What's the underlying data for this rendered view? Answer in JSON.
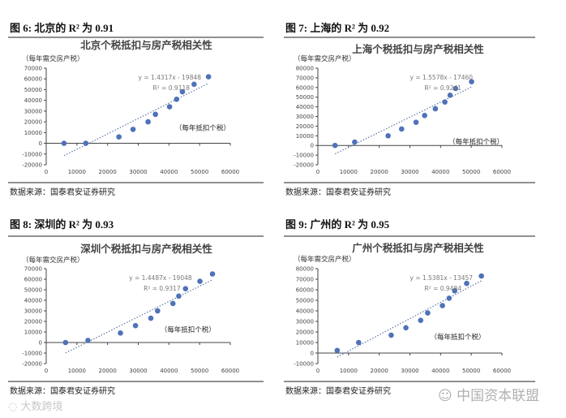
{
  "source_label": "数据来源：国泰君安证券研究",
  "watermarks": {
    "left": "大数跨境",
    "right": "中国资本联盟"
  },
  "colors": {
    "point": "#4f72b8",
    "trend": "#5a7aa8",
    "axis": "#444444",
    "text": "#222222"
  },
  "chart_data": [
    {
      "type": "scatter",
      "figure_title": "图 6:  北京的 R² 为 0.91",
      "title": "北京个税抵扣与房产税相关性",
      "ylabel": "（每年需交房产税）",
      "xlabel": "（每年抵扣个税）",
      "xlim": [
        0,
        60000
      ],
      "ylim": [
        -20000,
        70000
      ],
      "xticks": [
        0,
        10000,
        20000,
        30000,
        40000,
        50000,
        60000
      ],
      "yticks": [
        -20000,
        -10000,
        0,
        10000,
        20000,
        30000,
        40000,
        50000,
        60000,
        70000
      ],
      "trendline": {
        "slope": 1.4317,
        "intercept": -19848,
        "equation": "y = 1.4317x - 19848",
        "r2": "R² = 0.9118"
      },
      "points": [
        [
          5800,
          0
        ],
        [
          12900,
          0
        ],
        [
          23700,
          6000
        ],
        [
          28300,
          13000
        ],
        [
          33200,
          20000
        ],
        [
          35600,
          27000
        ],
        [
          40200,
          34000
        ],
        [
          42500,
          41000
        ],
        [
          44400,
          48000
        ],
        [
          48200,
          55000
        ],
        [
          52900,
          62000
        ]
      ]
    },
    {
      "type": "scatter",
      "figure_title": "图 7:  上海的 R² 为 0.92",
      "title": "上海个税抵扣与房产税相关性",
      "ylabel": "（每年需交房产税）",
      "xlabel": "（每年抵扣个税）",
      "xlim": [
        0,
        60000
      ],
      "ylim": [
        -20000,
        80000
      ],
      "xticks": [
        0,
        10000,
        20000,
        30000,
        40000,
        50000,
        60000
      ],
      "yticks": [
        -20000,
        -10000,
        0,
        10000,
        20000,
        30000,
        40000,
        50000,
        60000,
        70000,
        80000
      ],
      "trendline": {
        "slope": 1.5578,
        "intercept": -17460,
        "equation": "y = 1.5578x - 17460",
        "r2": "R² = 0.9241"
      },
      "points": [
        [
          5600,
          0
        ],
        [
          12000,
          3500
        ],
        [
          22900,
          10000
        ],
        [
          27300,
          17000
        ],
        [
          32000,
          24000
        ],
        [
          34800,
          31000
        ],
        [
          38300,
          38000
        ],
        [
          41400,
          45000
        ],
        [
          43100,
          52000
        ],
        [
          44900,
          59000
        ],
        [
          50100,
          66000
        ]
      ]
    },
    {
      "type": "scatter",
      "figure_title": "图 8:  深圳的 R² 为 0.93",
      "title": "深圳个税抵扣与房产税相关性",
      "ylabel": "（每年需交房产税）",
      "xlabel": "（每年抵扣个税）",
      "xlim": [
        0,
        60000
      ],
      "ylim": [
        -20000,
        70000
      ],
      "xticks": [
        0,
        10000,
        20000,
        30000,
        40000,
        50000,
        60000
      ],
      "yticks": [
        -20000,
        -10000,
        0,
        10000,
        20000,
        30000,
        40000,
        50000,
        60000,
        70000
      ],
      "trendline": {
        "slope": 1.4487,
        "intercept": -19048,
        "equation": "y = 1.4487x - 19048",
        "r2": "R² = 0.9317"
      },
      "points": [
        [
          6300,
          0
        ],
        [
          13600,
          2000
        ],
        [
          24200,
          9000
        ],
        [
          29100,
          16000
        ],
        [
          34100,
          23000
        ],
        [
          36300,
          30000
        ],
        [
          41300,
          37000
        ],
        [
          43200,
          44000
        ],
        [
          45400,
          51000
        ],
        [
          50100,
          58000
        ],
        [
          54200,
          65000
        ]
      ]
    },
    {
      "type": "scatter",
      "figure_title": "图 9:  广州的 R² 为 0.95",
      "title": "广州个税抵扣与房产税相关性",
      "ylabel": "（每年需交房产税）",
      "xlabel": "（每年抵扣个税）",
      "xlim": [
        0,
        60000
      ],
      "ylim": [
        -10000,
        80000
      ],
      "xticks": [
        0,
        10000,
        20000,
        30000,
        40000,
        50000,
        60000
      ],
      "yticks": [
        -10000,
        0,
        10000,
        20000,
        30000,
        40000,
        50000,
        60000,
        70000,
        80000
      ],
      "trendline": {
        "slope": 1.5381,
        "intercept": -13457,
        "equation": "y = 1.5381x - 13457",
        "r2": "R² = 0.9484"
      },
      "points": [
        [
          6300,
          2500
        ],
        [
          13300,
          10000
        ],
        [
          23900,
          17000
        ],
        [
          28700,
          24000
        ],
        [
          33500,
          31000
        ],
        [
          35800,
          38000
        ],
        [
          40600,
          45000
        ],
        [
          42800,
          52000
        ],
        [
          44600,
          59000
        ],
        [
          48500,
          66000
        ],
        [
          53300,
          73000
        ]
      ]
    }
  ]
}
